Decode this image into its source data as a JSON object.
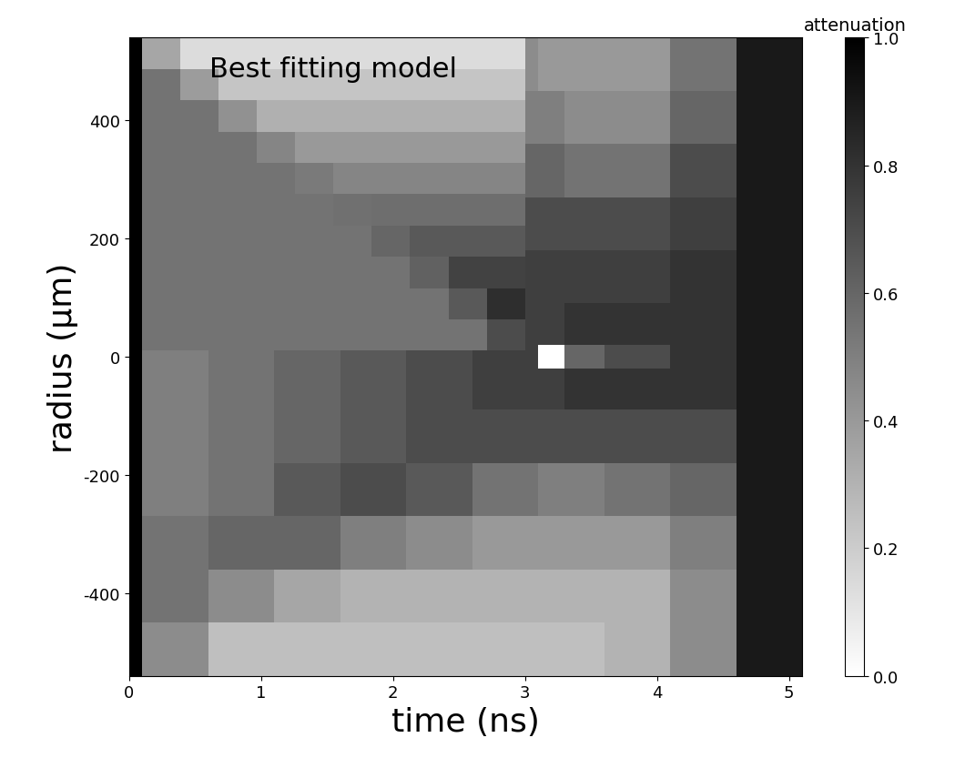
{
  "chart_data": {
    "type": "heatmap",
    "x_label": "time (ns)",
    "y_label": "radius (µm)",
    "xlim": [
      0,
      5.1
    ],
    "ylim": [
      -540,
      540
    ],
    "xticks": [
      0,
      1,
      2,
      3,
      4,
      5
    ],
    "yticks": [
      -400,
      -200,
      0,
      200,
      400
    ],
    "x_edges": [
      0,
      0.1,
      0.6,
      1.1,
      1.6,
      2.1,
      2.6,
      3.1,
      3.3,
      3.6,
      4.1,
      4.6,
      5.1
    ],
    "y_edges": [
      -540,
      -450,
      -360,
      -270,
      -180,
      -90,
      -20,
      20,
      90,
      180,
      270,
      360,
      450,
      540
    ],
    "cells": [
      [
        1.0,
        0.45,
        0.25,
        0.25,
        0.25,
        0.25,
        0.25,
        0.25,
        0.25,
        0.3,
        0.45,
        0.9
      ],
      [
        1.0,
        0.55,
        0.45,
        0.35,
        0.3,
        0.3,
        0.3,
        0.3,
        0.3,
        0.3,
        0.45,
        0.9
      ],
      [
        1.0,
        0.55,
        0.6,
        0.6,
        0.5,
        0.45,
        0.4,
        0.4,
        0.4,
        0.4,
        0.5,
        0.9
      ],
      [
        1.0,
        0.5,
        0.55,
        0.65,
        0.7,
        0.65,
        0.55,
        0.5,
        0.5,
        0.55,
        0.6,
        0.9
      ],
      [
        1.0,
        0.5,
        0.55,
        0.6,
        0.65,
        0.7,
        0.7,
        0.7,
        0.7,
        0.7,
        0.7,
        0.9
      ],
      [
        1.0,
        0.5,
        0.55,
        0.6,
        0.65,
        0.7,
        0.75,
        0.75,
        0.8,
        0.8,
        0.8,
        0.9
      ],
      [
        1.0,
        0.5,
        0.55,
        0.6,
        0.65,
        0.7,
        0.75,
        0.0,
        0.6,
        0.7,
        0.8,
        0.9
      ],
      [
        1.0,
        0.55,
        0.55,
        0.6,
        0.65,
        0.7,
        0.75,
        0.75,
        0.8,
        0.8,
        0.8,
        0.9
      ],
      [
        1.0,
        0.55,
        0.55,
        0.6,
        0.65,
        0.7,
        0.75,
        0.75,
        0.75,
        0.75,
        0.8,
        0.9
      ],
      [
        1.0,
        0.55,
        0.55,
        0.6,
        0.6,
        0.65,
        0.7,
        0.7,
        0.7,
        0.7,
        0.75,
        0.9
      ],
      [
        1.0,
        0.55,
        0.55,
        0.55,
        0.55,
        0.6,
        0.6,
        0.6,
        0.55,
        0.55,
        0.7,
        0.9
      ],
      [
        1.0,
        0.5,
        0.5,
        0.5,
        0.5,
        0.5,
        0.5,
        0.5,
        0.45,
        0.45,
        0.6,
        0.9
      ],
      [
        1.0,
        0.45,
        0.45,
        0.45,
        0.45,
        0.45,
        0.45,
        0.4,
        0.4,
        0.4,
        0.55,
        0.9
      ]
    ],
    "colorbar_label": "attenuation",
    "colorbar_range": [
      0.0,
      1.0
    ],
    "colorbar_ticks": [
      {
        "value": 0.0,
        "label": "0.0"
      },
      {
        "value": 0.2,
        "label": "0.2"
      },
      {
        "value": 0.4,
        "label": "0.4"
      },
      {
        "value": 0.6,
        "label": "0.6"
      },
      {
        "value": 0.8,
        "label": "0.8"
      },
      {
        "value": 1.0,
        "label": "1.0"
      }
    ],
    "inset": {
      "title": "Best fitting model",
      "x_edges": [
        0.1,
        0.39,
        0.68,
        0.97,
        1.26,
        1.55,
        1.84,
        2.13,
        2.42,
        2.71,
        3.0
      ],
      "y_edges": [
        10,
        63,
        116,
        169,
        222,
        275,
        328,
        381,
        434,
        487,
        540
      ],
      "cells": [
        [
          0.55,
          0.55,
          0.55,
          0.55,
          0.55,
          0.55,
          0.55,
          0.55,
          0.55,
          0.7
        ],
        [
          0.55,
          0.55,
          0.55,
          0.55,
          0.55,
          0.55,
          0.55,
          0.55,
          0.65,
          0.82
        ],
        [
          0.55,
          0.55,
          0.55,
          0.55,
          0.55,
          0.55,
          0.55,
          0.62,
          0.74,
          0.74
        ],
        [
          0.55,
          0.55,
          0.55,
          0.55,
          0.55,
          0.55,
          0.6,
          0.65,
          0.65,
          0.65
        ],
        [
          0.55,
          0.55,
          0.55,
          0.55,
          0.55,
          0.56,
          0.57,
          0.57,
          0.57,
          0.57
        ],
        [
          0.55,
          0.55,
          0.55,
          0.55,
          0.52,
          0.48,
          0.48,
          0.48,
          0.48,
          0.48
        ],
        [
          0.55,
          0.55,
          0.55,
          0.48,
          0.4,
          0.4,
          0.4,
          0.4,
          0.4,
          0.4
        ],
        [
          0.55,
          0.55,
          0.43,
          0.31,
          0.31,
          0.31,
          0.31,
          0.31,
          0.31,
          0.31
        ],
        [
          0.55,
          0.39,
          0.23,
          0.23,
          0.23,
          0.23,
          0.23,
          0.23,
          0.23,
          0.23
        ],
        [
          0.35,
          0.14,
          0.14,
          0.14,
          0.14,
          0.14,
          0.14,
          0.14,
          0.14,
          0.14
        ]
      ]
    }
  }
}
